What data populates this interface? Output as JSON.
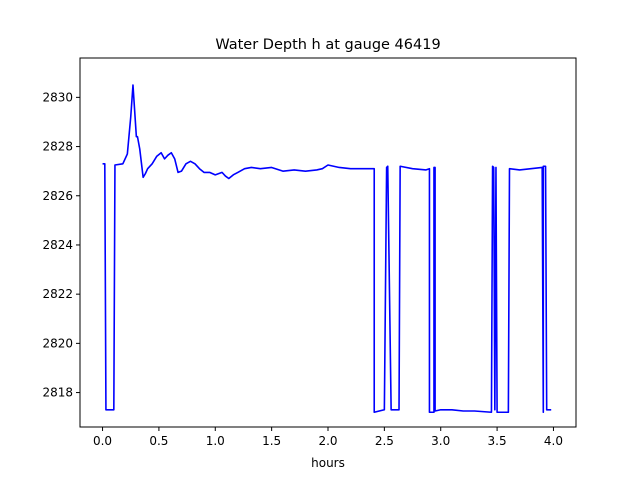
{
  "chart_data": {
    "type": "line",
    "title": "Water Depth h at gauge 46419",
    "xlabel": "hours",
    "ylabel": "",
    "xlim": [
      -0.2,
      4.2
    ],
    "ylim": [
      2816.6,
      2831.6
    ],
    "xticks": [
      0.0,
      0.5,
      1.0,
      1.5,
      2.0,
      2.5,
      3.0,
      3.5,
      4.0
    ],
    "xtick_labels": [
      "0.0",
      "0.5",
      "1.0",
      "1.5",
      "2.0",
      "2.5",
      "3.0",
      "3.5",
      "4.0"
    ],
    "yticks": [
      2818,
      2820,
      2822,
      2824,
      2826,
      2828,
      2830
    ],
    "ytick_labels": [
      "2818",
      "2820",
      "2822",
      "2824",
      "2826",
      "2828",
      "2830"
    ],
    "grid": false,
    "series": [
      {
        "color": "#0000ff",
        "x": [
          0.0,
          0.02,
          0.03,
          0.1,
          0.11,
          0.18,
          0.22,
          0.25,
          0.27,
          0.28,
          0.3,
          0.31,
          0.33,
          0.36,
          0.38,
          0.4,
          0.44,
          0.48,
          0.52,
          0.55,
          0.58,
          0.61,
          0.64,
          0.67,
          0.7,
          0.74,
          0.78,
          0.82,
          0.86,
          0.9,
          0.95,
          1.0,
          1.03,
          1.06,
          1.09,
          1.12,
          1.16,
          1.2,
          1.26,
          1.32,
          1.4,
          1.5,
          1.6,
          1.7,
          1.8,
          1.9,
          1.95,
          2.0,
          2.05,
          2.1,
          2.2,
          2.3,
          2.41,
          2.41,
          2.5,
          2.52,
          2.53,
          2.56,
          2.57,
          2.63,
          2.64,
          2.75,
          2.87,
          2.9,
          2.9,
          2.94,
          2.94,
          2.95,
          2.95,
          3.0,
          3.1,
          3.2,
          3.3,
          3.45,
          3.46,
          3.47,
          3.48,
          3.49,
          3.5,
          3.6,
          3.61,
          3.7,
          3.9,
          3.91,
          3.91,
          3.93,
          3.94,
          3.98
        ],
        "values": [
          2827.3,
          2827.3,
          2817.3,
          2817.3,
          2827.25,
          2827.3,
          2827.7,
          2829.2,
          2830.5,
          2829.8,
          2828.4,
          2828.4,
          2827.9,
          2826.75,
          2826.9,
          2827.1,
          2827.3,
          2827.6,
          2827.75,
          2827.5,
          2827.65,
          2827.75,
          2827.5,
          2826.95,
          2827.0,
          2827.3,
          2827.4,
          2827.3,
          2827.1,
          2826.95,
          2826.95,
          2826.85,
          2826.9,
          2826.95,
          2826.8,
          2826.7,
          2826.85,
          2826.95,
          2827.1,
          2827.15,
          2827.1,
          2827.15,
          2827.0,
          2827.05,
          2827.0,
          2827.05,
          2827.1,
          2827.25,
          2827.2,
          2827.15,
          2827.1,
          2827.1,
          2827.1,
          2817.2,
          2817.3,
          2827.15,
          2827.2,
          2817.3,
          2817.3,
          2817.3,
          2827.2,
          2827.1,
          2827.05,
          2827.1,
          2817.2,
          2817.2,
          2827.15,
          2827.15,
          2817.25,
          2817.3,
          2817.3,
          2817.25,
          2817.25,
          2817.2,
          2827.2,
          2827.15,
          2817.3,
          2827.15,
          2817.2,
          2817.2,
          2827.1,
          2827.05,
          2827.15,
          2817.2,
          2827.2,
          2827.2,
          2817.3,
          2817.3
        ]
      }
    ]
  }
}
